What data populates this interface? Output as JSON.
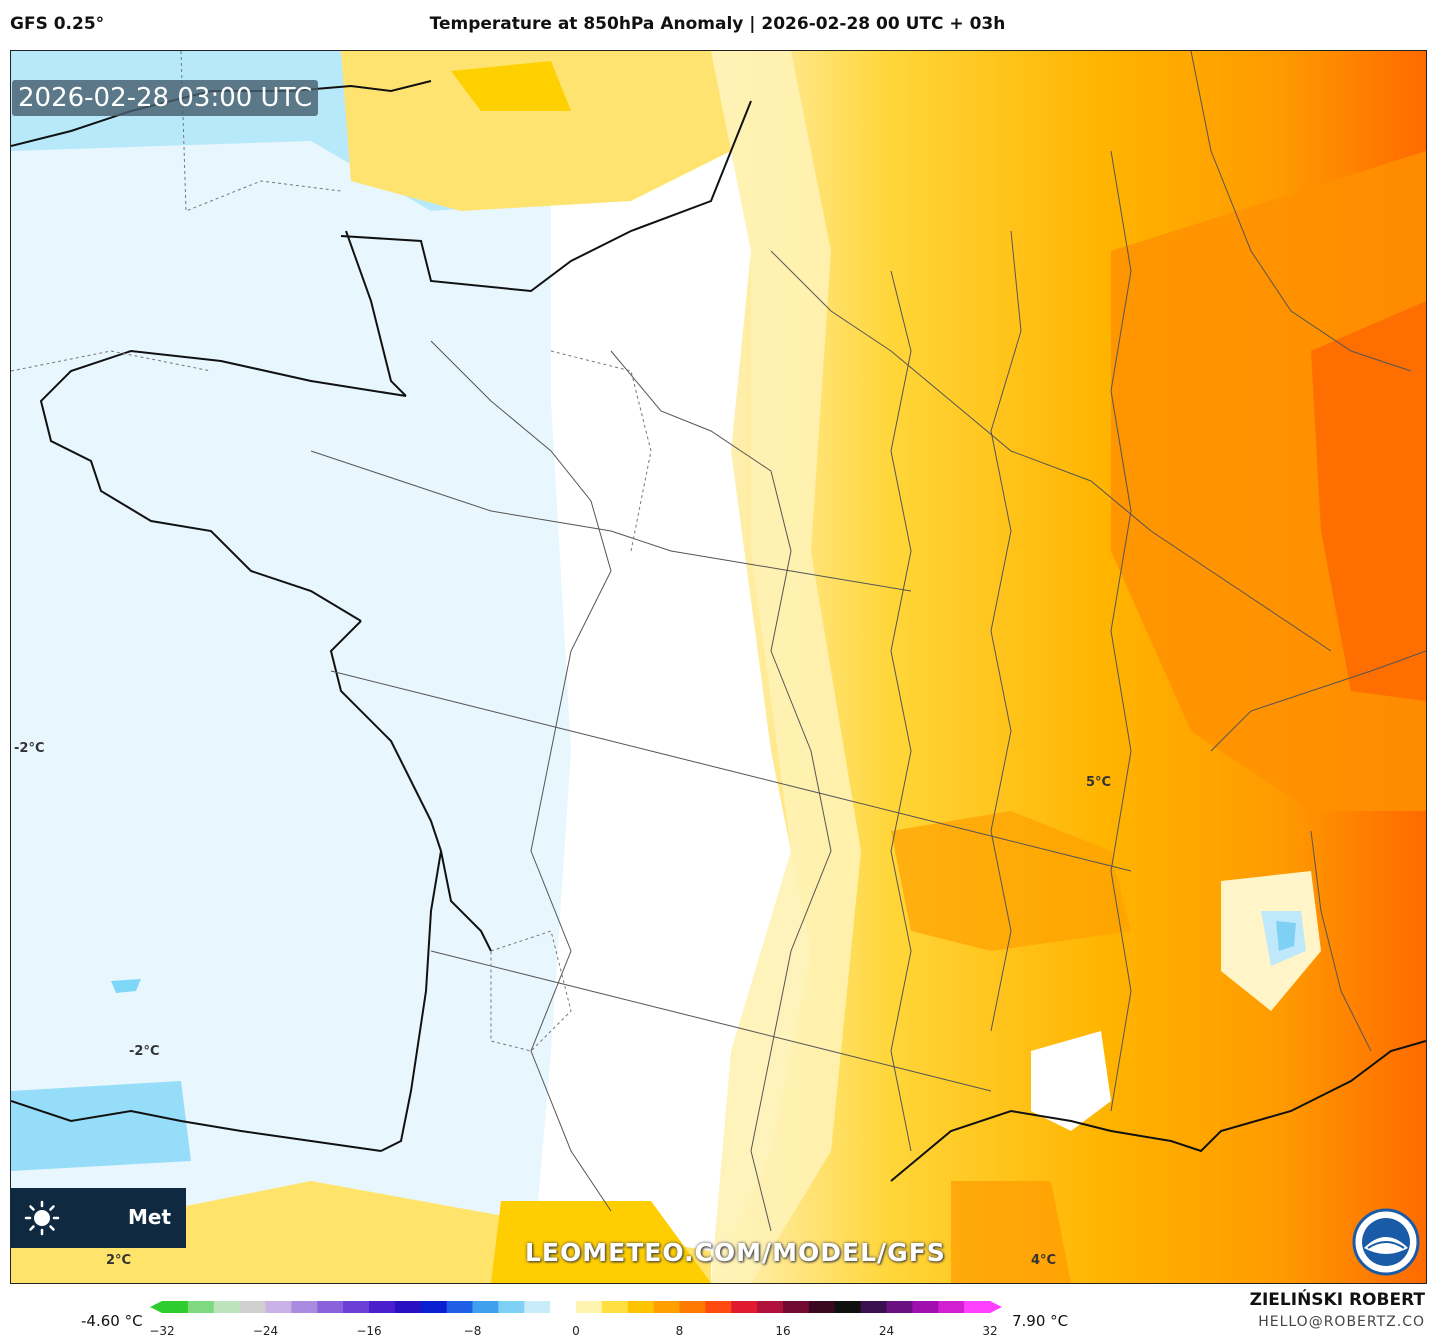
{
  "header": {
    "model": "GFS 0.25°",
    "title": "Temperature at 850hPa Anomaly | 2026-02-28 00 UTC + 03h"
  },
  "map": {
    "timestamp": "2026-02-28 03:00 UTC",
    "contour_labels": [
      "-2°C",
      "-2°C",
      "2°C",
      "5°C",
      "4°C"
    ],
    "watermark": "LEOMETEO.COM/MODEL/GFS",
    "brand_text": "Met",
    "brand_icon": "sun-icon",
    "agency_logo": "noaa-logo"
  },
  "colorbar": {
    "min_label": "-4.60 °C",
    "max_label": "7.90 °C",
    "ticks": [
      "−32",
      "−24",
      "−16",
      "−8",
      "0",
      "8",
      "16",
      "24",
      "32"
    ],
    "range": [
      -32,
      32
    ],
    "colors": [
      "#2ecc2e",
      "#7fd97f",
      "#bde3bd",
      "#cfcfcf",
      "#c9b3e6",
      "#a98be0",
      "#8a63dc",
      "#6a3fd6",
      "#4a20cc",
      "#2a10c0",
      "#0a1fd0",
      "#1f5fe6",
      "#3fa0f0",
      "#7fd0f5",
      "#c9ecfa",
      "#ffffff",
      "#fff3b0",
      "#ffe040",
      "#ffc400",
      "#ffa000",
      "#ff7a00",
      "#ff4a10",
      "#e01a30",
      "#b0103a",
      "#700a30",
      "#3a0820",
      "#101010",
      "#3a1050",
      "#6a1080",
      "#a010b0",
      "#d020d0",
      "#ff40ff"
    ]
  },
  "credit": {
    "name": "ZIELIŃSKI ROBERT",
    "email": "HELLO@ROBERTZ.CO"
  }
}
